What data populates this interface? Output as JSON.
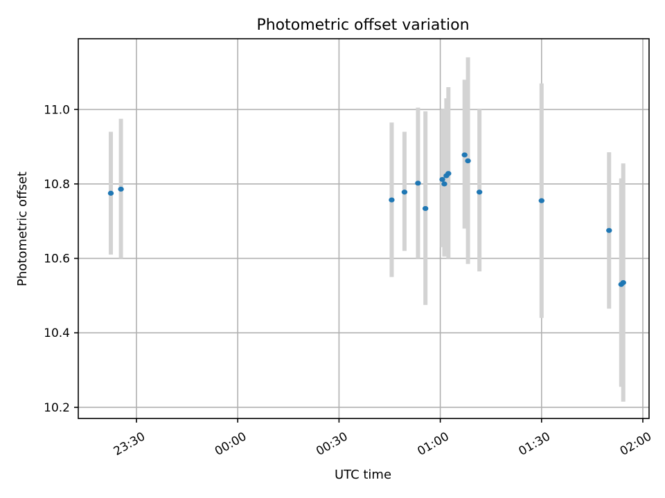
{
  "chart_data": {
    "type": "scatter",
    "title": "Photometric offset variation",
    "xlabel": "UTC time",
    "ylabel": "Photometric offset",
    "x_ticks": [
      "23:30",
      "00:00",
      "00:30",
      "01:00",
      "01:30",
      "02:00"
    ],
    "y_ticks": [
      "10.2",
      "10.4",
      "10.6",
      "10.8",
      "11.0"
    ],
    "ylim": [
      10.17,
      11.19
    ],
    "grid": true,
    "errorbar_color": "#d3d3d3",
    "point_color": "#1f77b4",
    "points": [
      {
        "x": "23:22:24",
        "y": 10.775,
        "err_low": 10.61,
        "err_high": 10.94
      },
      {
        "x": "23:25:24",
        "y": 10.786,
        "err_low": 10.6,
        "err_high": 10.975
      },
      {
        "x": "00:45:36",
        "y": 10.757,
        "err_low": 10.55,
        "err_high": 10.965
      },
      {
        "x": "00:49:24",
        "y": 10.778,
        "err_low": 10.62,
        "err_high": 10.94
      },
      {
        "x": "00:53:24",
        "y": 10.802,
        "err_low": 10.6,
        "err_high": 11.005
      },
      {
        "x": "00:55:36",
        "y": 10.734,
        "err_low": 10.475,
        "err_high": 10.995
      },
      {
        "x": "01:00:36",
        "y": 10.812,
        "err_low": 10.63,
        "err_high": 11.0
      },
      {
        "x": "01:01:12",
        "y": 10.8,
        "err_low": 10.605,
        "err_high": 11.0
      },
      {
        "x": "01:01:48",
        "y": 10.822,
        "err_low": 10.62,
        "err_high": 11.03
      },
      {
        "x": "01:02:24",
        "y": 10.828,
        "err_low": 10.6,
        "err_high": 11.06
      },
      {
        "x": "01:07:12",
        "y": 10.878,
        "err_low": 10.68,
        "err_high": 11.08
      },
      {
        "x": "01:08:12",
        "y": 10.862,
        "err_low": 10.585,
        "err_high": 11.14
      },
      {
        "x": "01:11:36",
        "y": 10.778,
        "err_low": 10.565,
        "err_high": 11.0
      },
      {
        "x": "01:30:00",
        "y": 10.755,
        "err_low": 10.44,
        "err_high": 11.07
      },
      {
        "x": "01:50:00",
        "y": 10.675,
        "err_low": 10.465,
        "err_high": 10.885
      },
      {
        "x": "01:53:36",
        "y": 10.53,
        "err_low": 10.255,
        "err_high": 10.815
      },
      {
        "x": "01:54:12",
        "y": 10.535,
        "err_low": 10.215,
        "err_high": 10.855
      }
    ]
  }
}
